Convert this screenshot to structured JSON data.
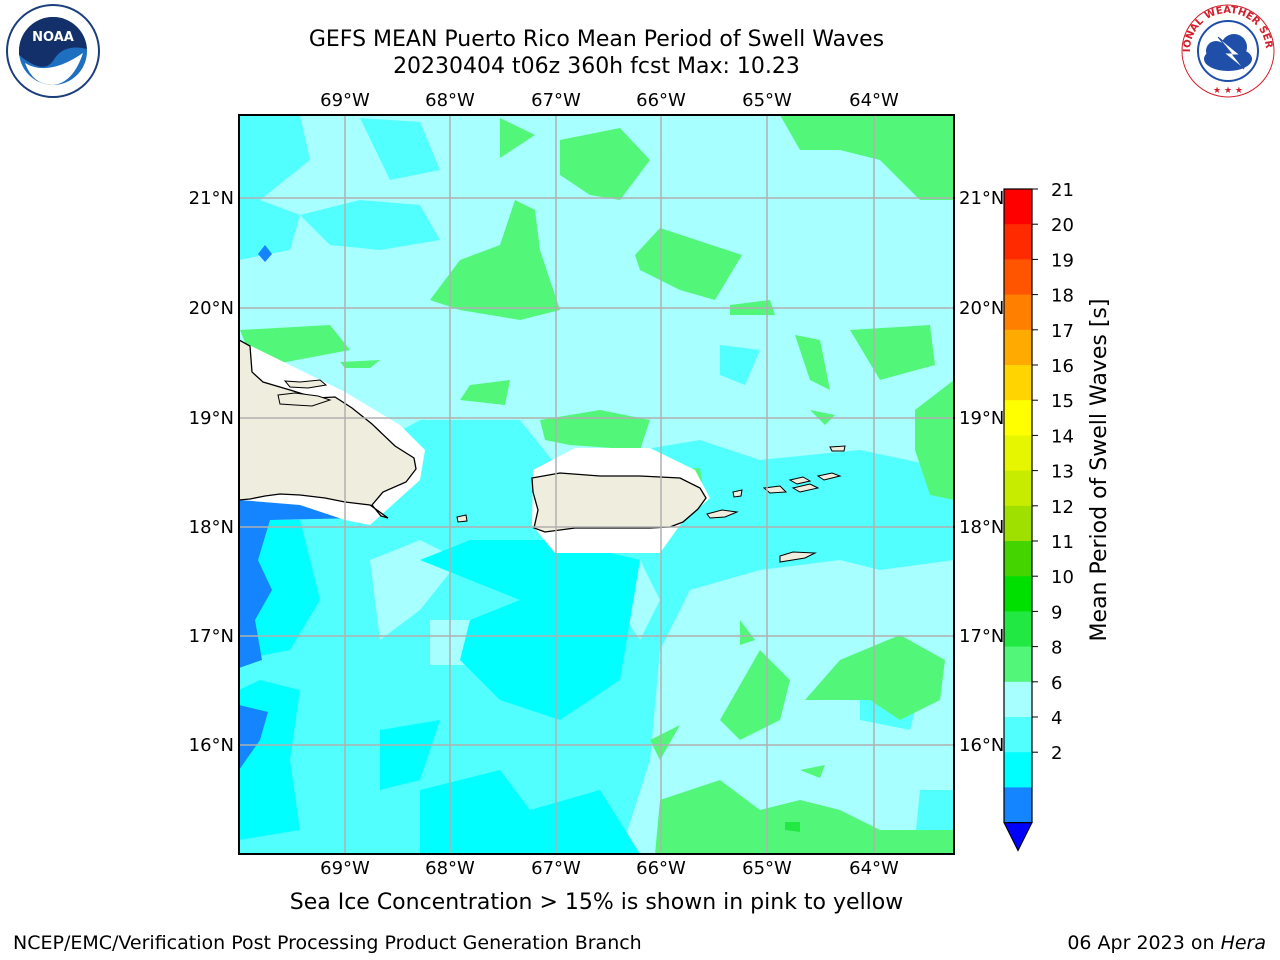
{
  "header": {
    "title_line1": "GEFS MEAN Puerto Rico Mean Period of Swell Waves",
    "title_line2": "20230404 t06z 360h fcst   Max: 10.23"
  },
  "logos": {
    "left": {
      "name": "noaa-logo",
      "text": "NOAA"
    },
    "right": {
      "name": "nws-logo",
      "text": "NATIONAL WEATHER SERVICE"
    }
  },
  "map": {
    "lon_labels": [
      "69°W",
      "68°W",
      "67°W",
      "66°W",
      "65°W",
      "64°W"
    ],
    "lat_labels": [
      "21°N",
      "20°N",
      "19°N",
      "18°N",
      "17°N",
      "16°N"
    ],
    "land_color": "#efedde",
    "coast_color": "#000000",
    "grid_color": "#b0b0b0"
  },
  "colorbar": {
    "label": "Mean Period of Swell Waves [s]",
    "ticks": [
      "21",
      "20",
      "19",
      "18",
      "17",
      "16",
      "15",
      "14",
      "13",
      "12",
      "11",
      "10",
      "9",
      "8",
      "6",
      "4",
      "2"
    ],
    "colors": [
      "#ff0000",
      "#ff2a00",
      "#ff5500",
      "#ff7f00",
      "#ffaa00",
      "#ffd400",
      "#ffff00",
      "#e6f500",
      "#c8ec00",
      "#a0e000",
      "#44d400",
      "#00e000",
      "#22e844",
      "#52f77a",
      "#a8ffff",
      "#52ffff",
      "#00ffff",
      "#1484ff",
      "#0000ff"
    ]
  },
  "caption": "Sea Ice Concentration > 15% is shown in pink to yellow",
  "footer": {
    "left": "NCEP/EMC/Verification Post Processing Product Generation Branch",
    "right_prefix": "06 Apr 2023 on ",
    "right_host": "Hera"
  }
}
